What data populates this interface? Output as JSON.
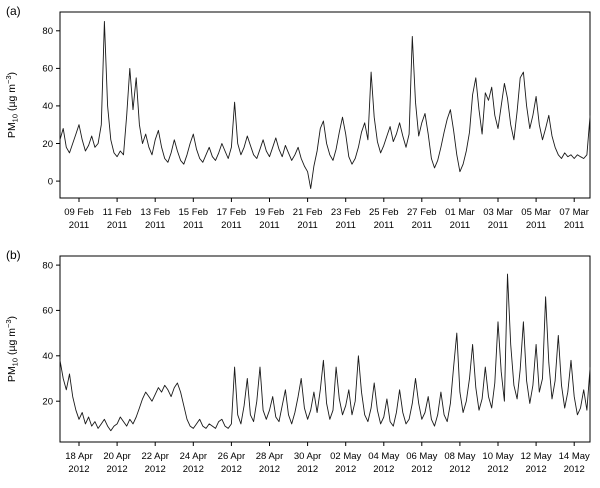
{
  "panels": {
    "a_label": "(a)",
    "b_label": "(b)"
  },
  "line_color": "#1a1a1a",
  "chart_data": [
    {
      "type": "line",
      "panel": "a",
      "ylabel": "PM10 (µg m-3)",
      "ylabel_parts": {
        "pre": "PM",
        "sub": "10",
        "mid": " (µg m",
        "sup": "−3",
        "post": ")"
      },
      "yticks": [
        0,
        20,
        40,
        60,
        80
      ],
      "ylim": [
        -9,
        90
      ],
      "xlim": [
        0,
        27.83
      ],
      "points_per_day": 6,
      "tick_year": "2011",
      "xticks": [
        {
          "pos": 1,
          "label": "09 Feb"
        },
        {
          "pos": 3,
          "label": "11 Feb"
        },
        {
          "pos": 5,
          "label": "13 Feb"
        },
        {
          "pos": 7,
          "label": "15 Feb"
        },
        {
          "pos": 9,
          "label": "17 Feb"
        },
        {
          "pos": 11,
          "label": "19 Feb"
        },
        {
          "pos": 13,
          "label": "21 Feb"
        },
        {
          "pos": 15,
          "label": "23 Feb"
        },
        {
          "pos": 17,
          "label": "25 Feb"
        },
        {
          "pos": 19,
          "label": "27 Feb"
        },
        {
          "pos": 21,
          "label": "01 Mar"
        },
        {
          "pos": 23,
          "label": "03 Mar"
        },
        {
          "pos": 25,
          "label": "05 Mar"
        },
        {
          "pos": 27,
          "label": "07 Mar"
        }
      ],
      "values": [
        22,
        28,
        18,
        15,
        20,
        25,
        30,
        22,
        16,
        19,
        24,
        18,
        20,
        30,
        85,
        40,
        22,
        15,
        13,
        16,
        14,
        35,
        60,
        38,
        55,
        30,
        20,
        25,
        18,
        14,
        22,
        27,
        18,
        12,
        10,
        15,
        22,
        16,
        11,
        9,
        14,
        20,
        25,
        17,
        12,
        10,
        14,
        18,
        13,
        11,
        15,
        20,
        16,
        12,
        18,
        42,
        20,
        14,
        18,
        24,
        19,
        14,
        12,
        17,
        22,
        16,
        13,
        18,
        23,
        17,
        13,
        19,
        15,
        11,
        14,
        18,
        12,
        8,
        5,
        -4,
        8,
        16,
        28,
        32,
        20,
        14,
        11,
        17,
        26,
        34,
        25,
        13,
        9,
        12,
        18,
        26,
        31,
        22,
        58,
        34,
        21,
        15,
        19,
        24,
        29,
        21,
        25,
        31,
        24,
        18,
        25,
        77,
        42,
        24,
        31,
        36,
        25,
        12,
        7,
        11,
        18,
        26,
        33,
        38,
        27,
        14,
        5,
        9,
        16,
        26,
        46,
        55,
        38,
        25,
        47,
        43,
        50,
        35,
        28,
        40,
        52,
        44,
        30,
        22,
        37,
        55,
        58,
        40,
        28,
        35,
        45,
        30,
        22,
        28,
        35,
        24,
        18,
        14,
        12,
        15,
        13,
        14,
        12,
        14,
        13,
        12,
        14,
        35
      ]
    },
    {
      "type": "line",
      "panel": "b",
      "ylabel": "PM10 (µg m-3)",
      "ylabel_parts": {
        "pre": "PM",
        "sub": "10",
        "mid": " (µg m",
        "sup": "−3",
        "post": ")"
      },
      "yticks": [
        20,
        40,
        60,
        80
      ],
      "ylim": [
        2,
        84
      ],
      "xlim": [
        0,
        27.83
      ],
      "points_per_day": 6,
      "tick_year": "2012",
      "xticks": [
        {
          "pos": 1,
          "label": "18 Apr"
        },
        {
          "pos": 3,
          "label": "20 Apr"
        },
        {
          "pos": 5,
          "label": "22 Apr"
        },
        {
          "pos": 7,
          "label": "24 Apr"
        },
        {
          "pos": 9,
          "label": "26 Apr"
        },
        {
          "pos": 11,
          "label": "28 Apr"
        },
        {
          "pos": 13,
          "label": "30 Apr"
        },
        {
          "pos": 15,
          "label": "02 May"
        },
        {
          "pos": 17,
          "label": "04 May"
        },
        {
          "pos": 19,
          "label": "06 May"
        },
        {
          "pos": 21,
          "label": "08 May"
        },
        {
          "pos": 23,
          "label": "10 May"
        },
        {
          "pos": 25,
          "label": "12 May"
        },
        {
          "pos": 27,
          "label": "14 May"
        }
      ],
      "values": [
        38,
        30,
        25,
        32,
        22,
        16,
        12,
        15,
        10,
        13,
        9,
        11,
        8,
        10,
        12,
        9,
        7,
        9,
        10,
        13,
        11,
        9,
        12,
        10,
        13,
        17,
        21,
        24,
        22,
        20,
        23,
        26,
        24,
        27,
        25,
        22,
        26,
        28,
        24,
        18,
        12,
        9,
        8,
        10,
        12,
        9,
        8,
        10,
        9,
        8,
        11,
        12,
        9,
        8,
        10,
        35,
        14,
        10,
        18,
        30,
        14,
        11,
        20,
        35,
        16,
        12,
        16,
        22,
        13,
        11,
        18,
        25,
        14,
        10,
        15,
        22,
        30,
        17,
        12,
        16,
        24,
        15,
        25,
        38,
        19,
        12,
        16,
        35,
        21,
        14,
        18,
        25,
        14,
        20,
        40,
        24,
        14,
        11,
        17,
        28,
        16,
        10,
        13,
        21,
        11,
        9,
        15,
        25,
        15,
        10,
        12,
        19,
        30,
        19,
        12,
        15,
        22,
        12,
        9,
        14,
        24,
        14,
        11,
        19,
        35,
        50,
        24,
        15,
        20,
        30,
        45,
        26,
        16,
        21,
        35,
        22,
        17,
        28,
        55,
        33,
        20,
        76,
        45,
        27,
        21,
        34,
        55,
        29,
        19,
        27,
        45,
        24,
        30,
        66,
        37,
        21,
        29,
        49,
        27,
        17,
        24,
        38,
        22,
        14,
        17,
        25,
        16,
        35
      ]
    }
  ]
}
